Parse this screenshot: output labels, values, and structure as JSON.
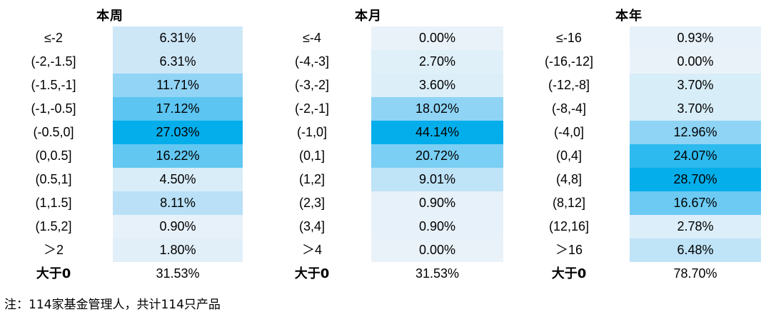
{
  "panels": [
    {
      "title": "本周",
      "rows": [
        {
          "label": "≤-2",
          "value": "6.31%",
          "color": "#cde7f7"
        },
        {
          "label": "(-2,-1.5]",
          "value": "6.31%",
          "color": "#cde7f7"
        },
        {
          "label": "(-1.5,-1]",
          "value": "11.71%",
          "color": "#91d4f5"
        },
        {
          "label": "(-1,-0.5]",
          "value": "17.12%",
          "color": "#5cc5f1"
        },
        {
          "label": "(-0.5,0]",
          "value": "27.03%",
          "color": "#04aeeb"
        },
        {
          "label": "(0,0.5]",
          "value": "16.22%",
          "color": "#62c7f1"
        },
        {
          "label": "(0.5,1]",
          "value": "4.50%",
          "color": "#d9edf8"
        },
        {
          "label": "(1,1.5]",
          "value": "8.11%",
          "color": "#b9e0f6"
        },
        {
          "label": "(1.5,2]",
          "value": "0.90%",
          "color": "#e7f1f9"
        },
        {
          "label": "＞2",
          "value": "1.80%",
          "color": "#e1eff9"
        }
      ],
      "total_label": "大于0",
      "total_value": "31.53%"
    },
    {
      "title": "本月",
      "rows": [
        {
          "label": "≤-4",
          "value": "0.00%",
          "color": "#eaf2f9"
        },
        {
          "label": "(-4,-3]",
          "value": "2.70%",
          "color": "#dff0f9"
        },
        {
          "label": "(-3,-2]",
          "value": "3.60%",
          "color": "#dceff9"
        },
        {
          "label": "(-2,-1]",
          "value": "18.02%",
          "color": "#8fd4f5"
        },
        {
          "label": "(-1,0]",
          "value": "44.14%",
          "color": "#04aeeb"
        },
        {
          "label": "(0,1]",
          "value": "20.72%",
          "color": "#7bcff4"
        },
        {
          "label": "(1,2]",
          "value": "9.01%",
          "color": "#bfe3f7"
        },
        {
          "label": "(2,3]",
          "value": "0.90%",
          "color": "#e7f1f9"
        },
        {
          "label": "(3,4]",
          "value": "0.90%",
          "color": "#e7f1f9"
        },
        {
          "label": "＞4",
          "value": "0.00%",
          "color": "#eaf2f9"
        }
      ],
      "total_label": "大于0",
      "total_value": "31.53%"
    },
    {
      "title": "本年",
      "rows": [
        {
          "label": "≤-16",
          "value": "0.93%",
          "color": "#e6f1f9"
        },
        {
          "label": "(-16,-12]",
          "value": "0.00%",
          "color": "#eaf2f9"
        },
        {
          "label": "(-12,-8]",
          "value": "3.70%",
          "color": "#d7edf8"
        },
        {
          "label": "(-8,-4]",
          "value": "3.70%",
          "color": "#d7edf8"
        },
        {
          "label": "(-4,0]",
          "value": "12.96%",
          "color": "#8fd4f5"
        },
        {
          "label": "(0,4]",
          "value": "24.07%",
          "color": "#2dbaee"
        },
        {
          "label": "(4,8]",
          "value": "28.70%",
          "color": "#04aeeb"
        },
        {
          "label": "(8,12]",
          "value": "16.67%",
          "color": "#6ccaf3"
        },
        {
          "label": "(12,16]",
          "value": "2.78%",
          "color": "#dbeef9"
        },
        {
          "label": "＞16",
          "value": "6.48%",
          "color": "#bfe3f7"
        }
      ],
      "total_label": "大于0",
      "total_value": "78.70%"
    }
  ],
  "note": "注：114家基金管理人，共计114只产品"
}
